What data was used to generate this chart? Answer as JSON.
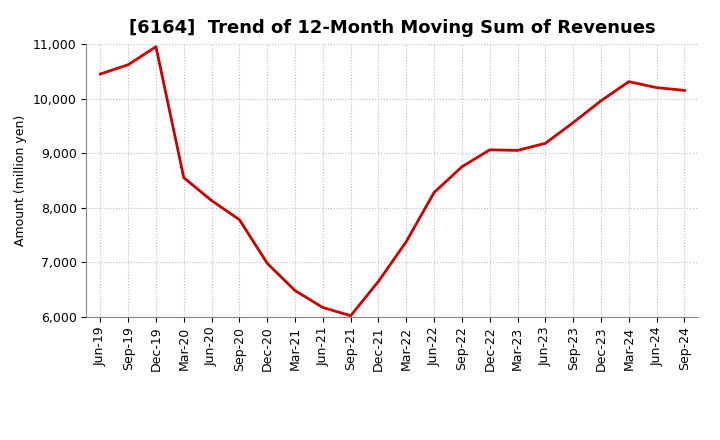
{
  "title": "[6164]  Trend of 12-Month Moving Sum of Revenues",
  "ylabel": "Amount (million yen)",
  "line_color": "#cc0000",
  "background_color": "#ffffff",
  "grid_color": "#bbbbbb",
  "ylim": [
    6000,
    11000
  ],
  "yticks": [
    6000,
    7000,
    8000,
    9000,
    10000,
    11000
  ],
  "x_labels": [
    "Jun-19",
    "Sep-19",
    "Dec-19",
    "Mar-20",
    "Jun-20",
    "Sep-20",
    "Dec-20",
    "Mar-21",
    "Jun-21",
    "Sep-21",
    "Dec-21",
    "Mar-22",
    "Jun-22",
    "Sep-22",
    "Dec-22",
    "Mar-23",
    "Jun-23",
    "Sep-23",
    "Dec-23",
    "Mar-24",
    "Jun-24",
    "Sep-24"
  ],
  "values": [
    10450,
    10620,
    10950,
    8550,
    8130,
    7780,
    6980,
    6480,
    6170,
    6020,
    6650,
    7380,
    8280,
    8750,
    9060,
    9050,
    9180,
    9560,
    9960,
    10310,
    10200,
    10150
  ],
  "title_fontsize": 13,
  "ylabel_fontsize": 9,
  "tick_fontsize": 9
}
